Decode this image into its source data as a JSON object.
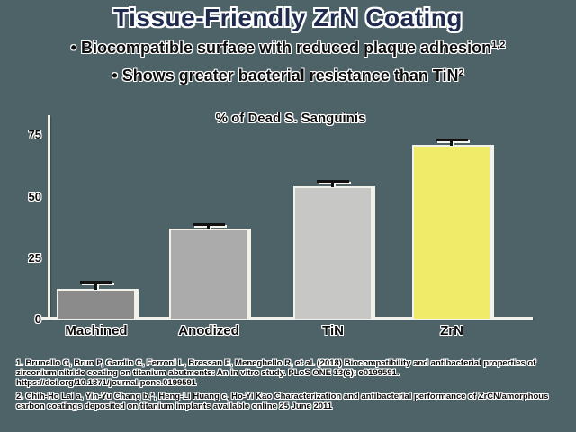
{
  "slide": {
    "title": "Tissue-Friendly ZrN Coating",
    "bullets": [
      {
        "marker": "•",
        "text": "Biocompatible surface with reduced plaque adhesion",
        "sup": "1,2"
      },
      {
        "marker": "•",
        "text": "Shows greater bacterial resistance than TiN",
        "sup": "2"
      }
    ]
  },
  "chart_data": {
    "type": "bar",
    "title": "% of Dead S. Sanguinis",
    "categories": [
      "Machined",
      "Anodized",
      "TiN",
      "ZrN"
    ],
    "values": [
      11.5,
      36,
      53,
      70
    ],
    "errors": [
      3,
      2,
      2.5,
      2.5
    ],
    "bar_colors": [
      "#8b8b8b",
      "#ababab",
      "#c7c7c5",
      "#f0eb69"
    ],
    "yticks": [
      0,
      25,
      50,
      75
    ],
    "ylim": [
      0,
      82
    ],
    "xlabel": "",
    "ylabel": "",
    "grid": false,
    "legend": false
  },
  "footnotes": [
    "1. Brunello G, Brun P, Gardin C, Ferroni L, Bressan E, Meneghello R, et al. (2018) Biocompatibility and antibacterial properties of zirconium nitride coating on titanium abutments: An in vitro study. PLoS ONE 13(6): e0199591. https://doi.org/10.1371/journal.pone.0199591",
    "2. Chih-Ho Lai a, Yin-Yu Chang b,*, Heng-Li Huang c, Ho-Yi Kao Characterization and antibacterial performance of ZrCN/amorphous carbon coatings deposited on titanium implants available online 25 June 2011"
  ],
  "colors": {
    "background": "#4d6368",
    "title_navy": "#1f2b4e",
    "text_black": "#0c0c0c",
    "axis_white": "#f2f1ea",
    "error_black": "#111111",
    "zrn_yellow": "#f0eb69"
  }
}
